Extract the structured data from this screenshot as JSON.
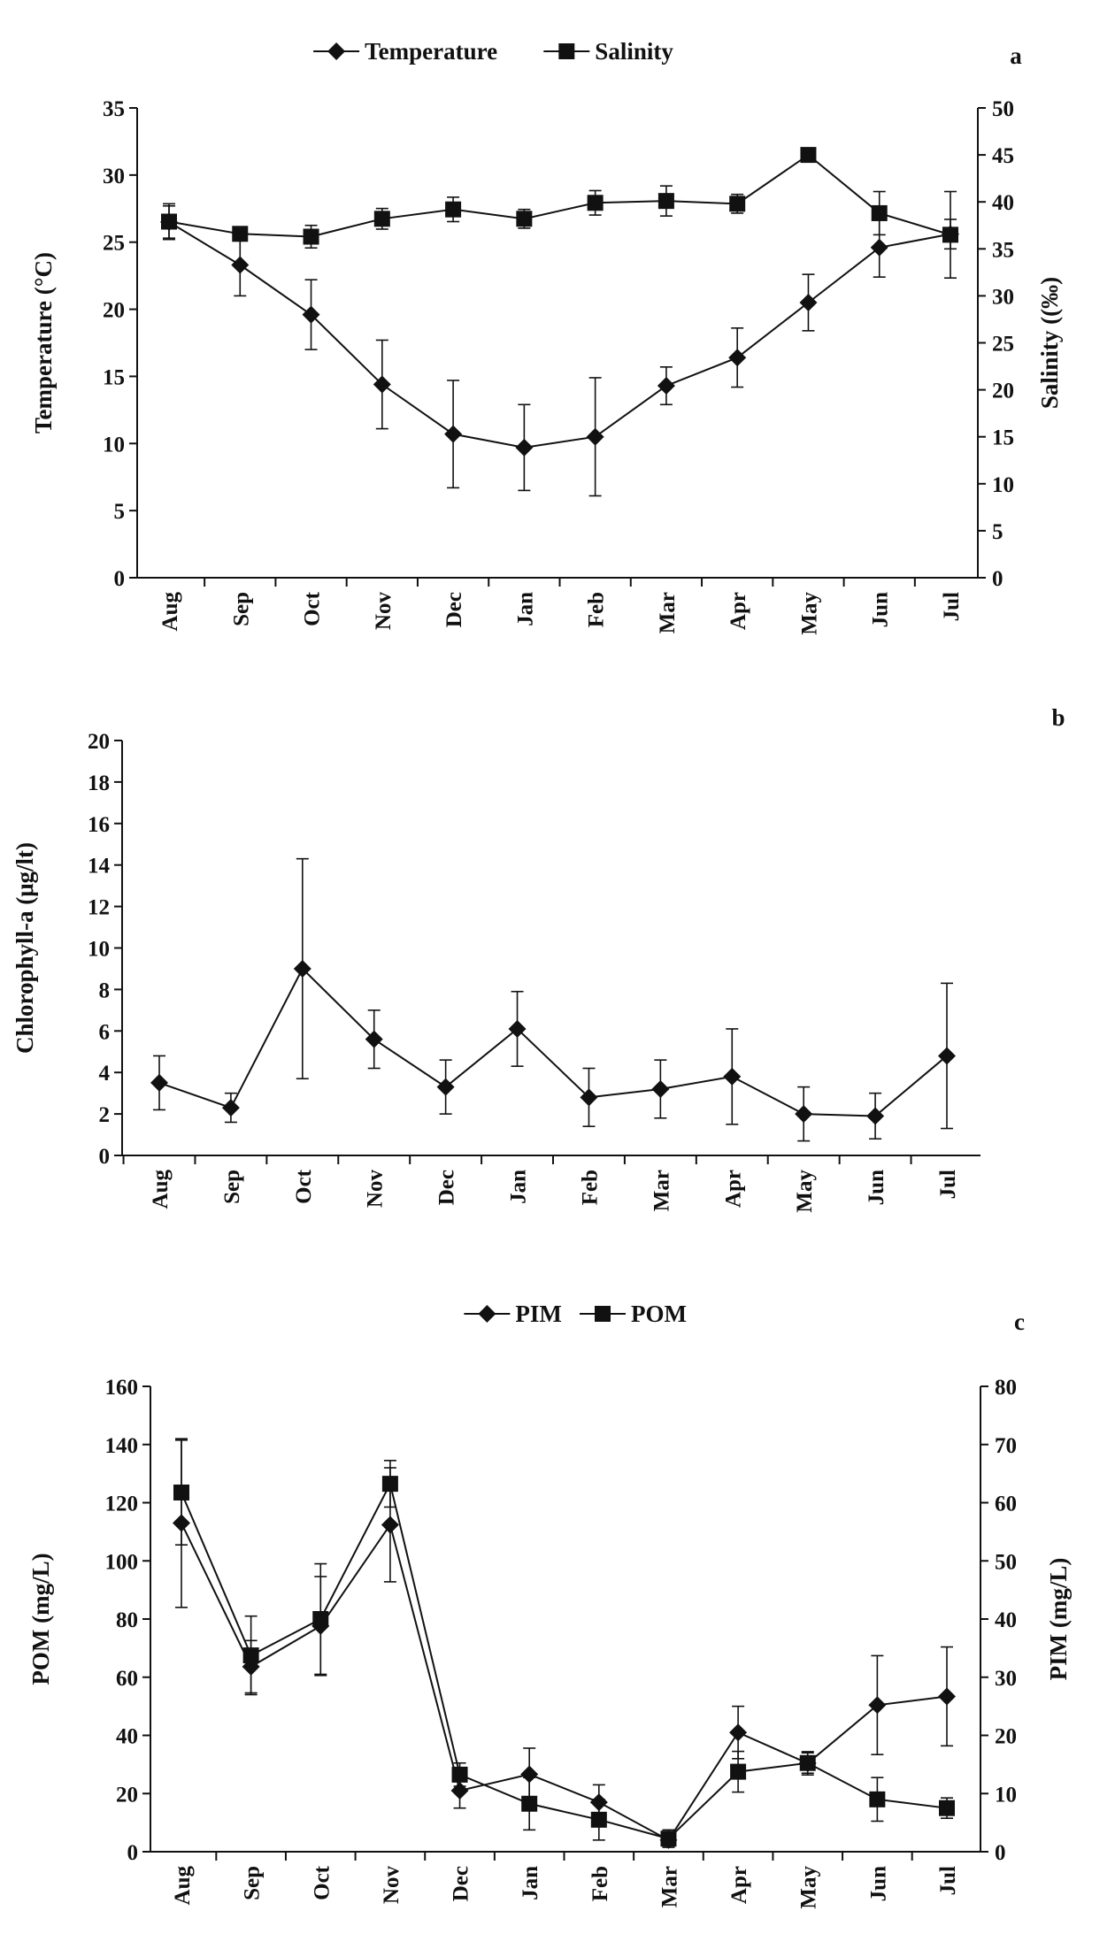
{
  "chart_data": [
    {
      "type": "line",
      "panel_label": "a",
      "categories": [
        "Aug",
        "Sep",
        "Oct",
        "Nov",
        "Dec",
        "Jan",
        "Feb",
        "Mar",
        "Apr",
        "May",
        "Jun",
        "Jul"
      ],
      "ylabel": "Temperature  (°C)",
      "ylim": [
        0,
        35
      ],
      "yticks": [
        0,
        5,
        10,
        15,
        20,
        25,
        30,
        35
      ],
      "y2label": "Salinity  ((‰)",
      "y2lim": [
        0,
        50
      ],
      "y2ticks": [
        0,
        5,
        10,
        15,
        20,
        25,
        30,
        35,
        40,
        45,
        50
      ],
      "legend_position": "top-center",
      "grid": false,
      "series": [
        {
          "name": "Temperature",
          "marker": "diamond",
          "axis": "left",
          "values": [
            26.5,
            23.3,
            19.6,
            14.4,
            10.7,
            9.7,
            10.5,
            14.3,
            16.4,
            20.5,
            24.6,
            25.6
          ],
          "errors": [
            1.2,
            2.3,
            2.6,
            3.3,
            4.0,
            3.2,
            4.4,
            1.4,
            2.2,
            2.1,
            2.2,
            1.1
          ]
        },
        {
          "name": "Salinity",
          "marker": "square",
          "axis": "right",
          "values": [
            37.9,
            36.6,
            36.3,
            38.2,
            39.2,
            38.2,
            39.9,
            40.1,
            39.8,
            45.0,
            38.8,
            36.5
          ],
          "errors": [
            1.9,
            0.7,
            1.2,
            1.1,
            1.3,
            1.0,
            1.3,
            1.6,
            1.0,
            0.3,
            2.3,
            4.6
          ]
        }
      ]
    },
    {
      "type": "line",
      "panel_label": "b",
      "categories": [
        "Aug",
        "Sep",
        "Oct",
        "Nov",
        "Dec",
        "Jan",
        "Feb",
        "Mar",
        "Apr",
        "May",
        "Jun",
        "Jul"
      ],
      "ylabel": "Chlorophyll-a  (μg/lt)",
      "ylim": [
        0,
        20
      ],
      "yticks": [
        0,
        2,
        4,
        6,
        8,
        10,
        12,
        14,
        16,
        18,
        20
      ],
      "grid": false,
      "series": [
        {
          "name": "",
          "marker": "diamond",
          "axis": "left",
          "values": [
            3.5,
            2.3,
            9.0,
            5.6,
            3.3,
            6.1,
            2.8,
            3.2,
            3.8,
            2.0,
            1.9,
            4.8
          ],
          "errors": [
            1.3,
            0.7,
            5.3,
            1.4,
            1.3,
            1.8,
            1.4,
            1.4,
            2.3,
            1.3,
            1.1,
            3.5
          ]
        }
      ]
    },
    {
      "type": "line",
      "panel_label": "c",
      "categories": [
        "Aug",
        "Sep",
        "Oct",
        "Nov",
        "Dec",
        "Jan",
        "Feb",
        "Mar",
        "Apr",
        "May",
        "Jun",
        "Jul"
      ],
      "ylabel": "POM (mg/L)",
      "ylim": [
        0,
        160
      ],
      "yticks": [
        0,
        20,
        40,
        60,
        80,
        100,
        120,
        140,
        160
      ],
      "y2label": "PIM (mg/L)",
      "y2lim": [
        0,
        80
      ],
      "y2ticks": [
        0,
        10,
        20,
        30,
        40,
        50,
        60,
        70,
        80
      ],
      "legend_position": "top-center",
      "grid": false,
      "series": [
        {
          "name": "PIM",
          "marker": "diamond",
          "axis": "right",
          "values": [
            56.5,
            31.8,
            38.8,
            56.2,
            10.5,
            13.3,
            8.5,
            2.0,
            20.5,
            15.2,
            25.2,
            26.7
          ],
          "errors": [
            14.5,
            4.5,
            8.5,
            9.8,
            3.0,
            4.5,
            3.0,
            1.0,
            4.5,
            2.0,
            8.5,
            8.5
          ]
        },
        {
          "name": "POM",
          "marker": "square",
          "axis": "left",
          "values": [
            123.5,
            67.5,
            80.0,
            126.5,
            26.5,
            16.5,
            11.0,
            4.5,
            27.5,
            30.5,
            18.0,
            15.0
          ],
          "errors": [
            18.0,
            13.5,
            19.0,
            8.0,
            4.0,
            9.0,
            7.0,
            3.0,
            7.0,
            3.5,
            7.5,
            3.5
          ]
        }
      ]
    }
  ]
}
